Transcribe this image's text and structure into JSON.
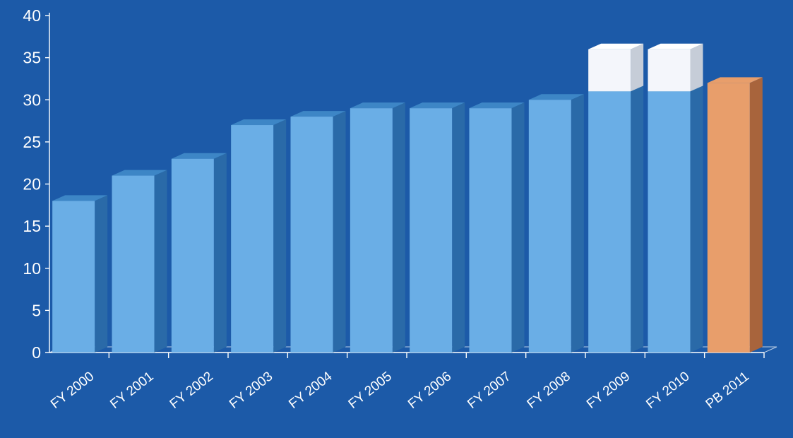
{
  "chart_data": {
    "type": "bar",
    "title": "",
    "xlabel": "",
    "ylabel": "",
    "ylim": [
      0,
      40
    ],
    "y_ticks": [
      0,
      5,
      10,
      15,
      20,
      25,
      30,
      35,
      40
    ],
    "categories": [
      "FY 2000",
      "FY 2001",
      "FY 2002",
      "FY 2003",
      "FY 2004",
      "FY 2005",
      "FY 2006",
      "FY 2007",
      "FY 2008",
      "FY 2009",
      "FY 2010",
      "PB 2011"
    ],
    "series": [
      {
        "values": [
          18,
          21,
          23,
          27,
          28,
          29,
          29,
          29,
          30,
          31,
          31,
          32
        ]
      },
      {
        "values": [
          0,
          0,
          0,
          0,
          0,
          0,
          0,
          0,
          0,
          5,
          5,
          0
        ]
      }
    ],
    "grid": false,
    "legend": "none",
    "colors": {
      "background": "#1c5aa8",
      "bar": "#6aaee6",
      "bar_side": "#2a6aa8",
      "bar_top": "#3d86c6",
      "stacked_bar": "#f4f6fb",
      "stacked_side": "#c6cdd8",
      "highlight_bar": "#e89e6b",
      "highlight_side": "#a8643c",
      "axis": "#ffffff",
      "text": "#ffffff"
    }
  }
}
